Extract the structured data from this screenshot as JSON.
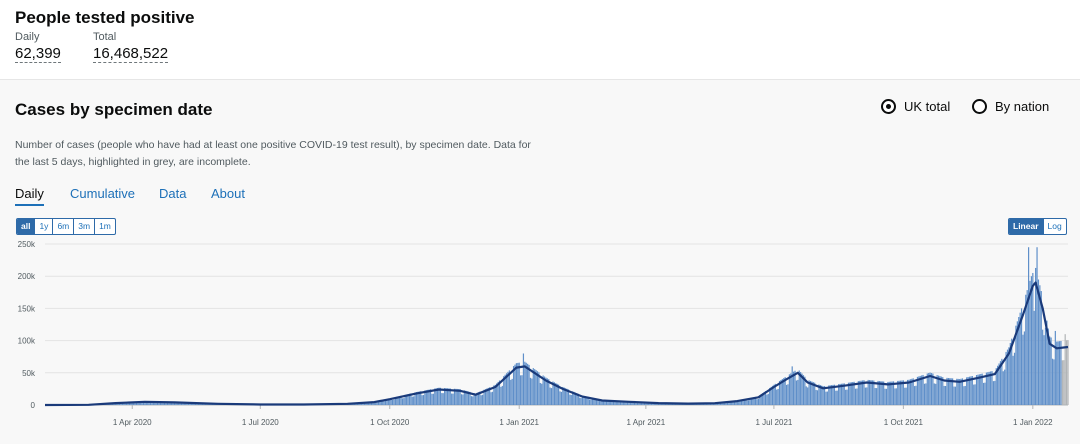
{
  "header": {
    "title": "People tested positive",
    "daily_label": "Daily",
    "daily_value": "62,399",
    "total_label": "Total",
    "total_value": "16,468,522"
  },
  "card": {
    "title": "Cases by specimen date",
    "radio_uk": "UK total",
    "radio_nation": "By nation",
    "description": "Number of cases (people who have had at least one positive COVID-19 test result), by specimen date. Data for the last 5 days, highlighted in grey, are incomplete.",
    "tabs": [
      "Daily",
      "Cumulative",
      "Data",
      "About"
    ],
    "ranges": [
      "all",
      "1y",
      "6m",
      "3m",
      "1m"
    ],
    "scales": [
      "Linear",
      "Log"
    ]
  },
  "colors": {
    "bar": "#5f8fc9",
    "bar_incomplete": "#b1b4b6",
    "line": "#1a3a7a",
    "accent": "#1d70b8"
  },
  "chart_data": {
    "type": "bar",
    "title": "",
    "xlabel": "",
    "ylabel": "",
    "ylim": [
      0,
      250000
    ],
    "y_ticks": [
      0,
      50000,
      100000,
      150000,
      200000,
      250000
    ],
    "y_tick_labels": [
      "0",
      "50k",
      "100k",
      "150k",
      "200k",
      "250k"
    ],
    "x_ticks": [
      "2020-04-01",
      "2020-07-01",
      "2020-10-01",
      "2021-01-01",
      "2021-04-01",
      "2021-07-01",
      "2021-10-01",
      "2022-01-01"
    ],
    "x_tick_labels": [
      "1 Apr 2020",
      "1 Jul 2020",
      "1 Oct 2020",
      "1 Jan 2021",
      "1 Apr 2021",
      "1 Jul 2021",
      "1 Oct 2021",
      "1 Jan 2022"
    ],
    "x_range": [
      "2020-01-30",
      "2022-01-26"
    ],
    "grid": true,
    "incomplete_days": 5,
    "series": [
      {
        "type": "line",
        "points": [
          [
            "2020-01-30",
            0
          ],
          [
            "2020-03-01",
            300
          ],
          [
            "2020-03-20",
            3000
          ],
          [
            "2020-04-10",
            5000
          ],
          [
            "2020-05-01",
            4000
          ],
          [
            "2020-06-01",
            1800
          ],
          [
            "2020-07-01",
            700
          ],
          [
            "2020-08-01",
            800
          ],
          [
            "2020-09-01",
            1800
          ],
          [
            "2020-09-20",
            4500
          ],
          [
            "2020-10-01",
            9000
          ],
          [
            "2020-10-20",
            18000
          ],
          [
            "2020-11-05",
            24000
          ],
          [
            "2020-11-20",
            22000
          ],
          [
            "2020-12-01",
            16000
          ],
          [
            "2020-12-15",
            28000
          ],
          [
            "2020-12-30",
            58000
          ],
          [
            "2021-01-05",
            60000
          ],
          [
            "2021-01-20",
            38000
          ],
          [
            "2021-02-01",
            25000
          ],
          [
            "2021-02-15",
            13000
          ],
          [
            "2021-03-01",
            7000
          ],
          [
            "2021-03-20",
            5000
          ],
          [
            "2021-04-10",
            3000
          ],
          [
            "2021-05-01",
            2200
          ],
          [
            "2021-05-20",
            2800
          ],
          [
            "2021-06-05",
            6000
          ],
          [
            "2021-06-20",
            12000
          ],
          [
            "2021-07-01",
            28000
          ],
          [
            "2021-07-10",
            40000
          ],
          [
            "2021-07-18",
            50000
          ],
          [
            "2021-07-25",
            35000
          ],
          [
            "2021-08-05",
            26000
          ],
          [
            "2021-08-20",
            30000
          ],
          [
            "2021-09-05",
            35000
          ],
          [
            "2021-09-20",
            32000
          ],
          [
            "2021-10-05",
            35000
          ],
          [
            "2021-10-20",
            45000
          ],
          [
            "2021-10-30",
            38000
          ],
          [
            "2021-11-10",
            36000
          ],
          [
            "2021-11-25",
            43000
          ],
          [
            "2021-12-05",
            48000
          ],
          [
            "2021-12-15",
            80000
          ],
          [
            "2021-12-25",
            140000
          ],
          [
            "2022-01-01",
            185000
          ],
          [
            "2022-01-03",
            190000
          ],
          [
            "2022-01-08",
            150000
          ],
          [
            "2022-01-13",
            95000
          ],
          [
            "2022-01-18",
            88000
          ],
          [
            "2022-01-26",
            90000
          ]
        ]
      }
    ],
    "bars": {
      "note": "daily values; spikes read from chart",
      "spikes": [
        [
          "2021-01-04",
          80000
        ],
        [
          "2021-12-29",
          245000
        ],
        [
          "2022-01-04",
          245000
        ],
        [
          "2022-01-01",
          205000
        ],
        [
          "2021-07-14",
          60000
        ],
        [
          "2022-01-10",
          120000
        ],
        [
          "2022-01-17",
          115000
        ],
        [
          "2022-01-24",
          110000
        ]
      ]
    }
  }
}
